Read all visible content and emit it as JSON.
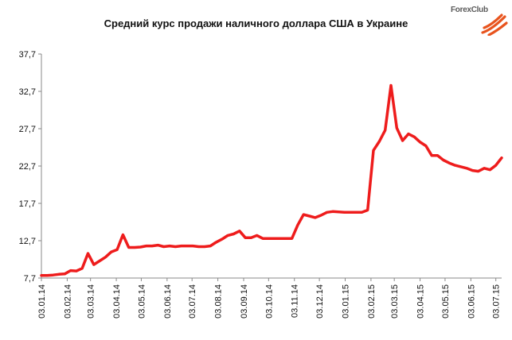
{
  "logo": {
    "text": "ForexClub",
    "colors": {
      "text": "#5a5a5a",
      "mark": "#e8541e"
    }
  },
  "chart_data": {
    "type": "line",
    "title": "Средний курс продажи наличного доллара США в Украине",
    "xlabel": "",
    "ylabel": "",
    "ylim": [
      7.7,
      37.7
    ],
    "yticks": [
      "7,7",
      "12,7",
      "17,7",
      "22,7",
      "27,7",
      "32,7",
      "37,7"
    ],
    "ytick_values": [
      7.7,
      12.7,
      17.7,
      22.7,
      27.7,
      32.7,
      37.7
    ],
    "xticks": [
      "03.01.14",
      "03.02.14",
      "03.03.14",
      "03.04.14",
      "03.05.14",
      "03.06.14",
      "03.07.14",
      "03.08.14",
      "03.09.14",
      "03.10.14",
      "03.11.14",
      "03.12.14",
      "03.01.15",
      "03.02.15",
      "03.03.15",
      "03.04.15",
      "03.05.15",
      "03.06.15",
      "03.07.15"
    ],
    "grid": false,
    "line_color": "#ee1c1c",
    "series": [
      {
        "x": [
          "03.01.14",
          "10.01.14",
          "17.01.14",
          "24.01.14",
          "31.01.14",
          "07.02.14",
          "14.02.14",
          "21.02.14",
          "28.02.14",
          "07.03.14",
          "14.03.14",
          "21.03.14",
          "28.03.14",
          "04.04.14",
          "11.04.14",
          "18.04.14",
          "25.04.14",
          "02.05.14",
          "09.05.14",
          "16.05.14",
          "23.05.14",
          "30.05.14",
          "06.06.14",
          "13.06.14",
          "20.06.14",
          "27.06.14",
          "04.07.14",
          "11.07.14",
          "18.07.14",
          "25.07.14",
          "01.08.14",
          "08.08.14",
          "15.08.14",
          "22.08.14",
          "29.08.14",
          "05.09.14",
          "12.09.14",
          "19.09.14",
          "26.09.14",
          "03.10.14",
          "10.10.14",
          "17.10.14",
          "24.10.14",
          "31.10.14",
          "07.11.14",
          "14.11.14",
          "21.11.14",
          "28.11.14",
          "05.12.14",
          "12.12.14",
          "19.12.14",
          "26.12.14",
          "02.01.15",
          "09.01.15",
          "16.01.15",
          "23.01.15",
          "30.01.15",
          "06.02.15",
          "13.02.15",
          "20.02.15",
          "27.02.15",
          "06.03.15",
          "13.03.15",
          "20.03.15",
          "27.03.15",
          "03.04.15",
          "10.04.15",
          "17.04.15",
          "24.04.15",
          "01.05.15",
          "08.05.15",
          "15.05.15",
          "22.05.15",
          "29.05.15",
          "05.06.15",
          "12.06.15",
          "19.06.15",
          "26.06.15",
          "03.07.15",
          "10.07.15"
        ],
        "values": [
          8.05,
          8.05,
          8.1,
          8.2,
          8.25,
          8.7,
          8.65,
          9.0,
          11.0,
          9.5,
          10.0,
          10.5,
          11.2,
          11.5,
          13.5,
          11.8,
          11.8,
          11.85,
          12.0,
          12.0,
          12.1,
          11.9,
          12.0,
          11.9,
          12.0,
          12.0,
          12.0,
          11.9,
          11.9,
          12.0,
          12.5,
          12.9,
          13.4,
          13.6,
          14.0,
          13.1,
          13.1,
          13.4,
          13.0,
          13.0,
          13.0,
          13.0,
          13.0,
          13.0,
          14.8,
          16.2,
          16.0,
          15.8,
          16.1,
          16.5,
          16.6,
          16.55,
          16.5,
          16.5,
          16.5,
          16.5,
          16.8,
          24.8,
          26.0,
          27.5,
          33.5,
          27.8,
          26.1,
          27.0,
          26.6,
          25.9,
          25.4,
          24.1,
          24.1,
          23.5,
          23.1,
          22.8,
          22.6,
          22.4,
          22.1,
          22.0,
          22.4,
          22.2,
          22.8,
          23.8
        ]
      }
    ]
  }
}
